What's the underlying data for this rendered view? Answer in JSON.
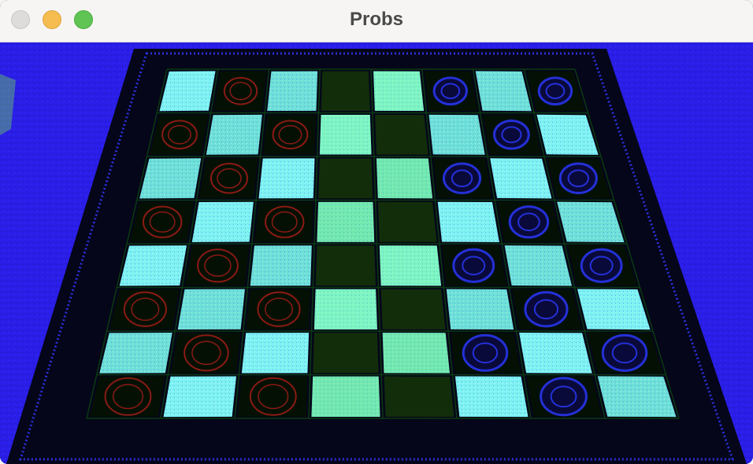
{
  "window": {
    "title": "Probs"
  },
  "traffic_lights": [
    "close",
    "minimize",
    "maximize"
  ],
  "image": {
    "description_free": true,
    "board": {
      "rows": 8,
      "cols": 8
    },
    "colors": {
      "background": "#2a1ee8",
      "board_frame": "#05061a",
      "dark_square": "#041004",
      "light_square": "#7ff2f2",
      "light_square_dim": "#6fe0d8",
      "green_noise": "#7dff3a",
      "piece_red": "#8b1a14",
      "piece_blue": "#2430d8"
    }
  }
}
